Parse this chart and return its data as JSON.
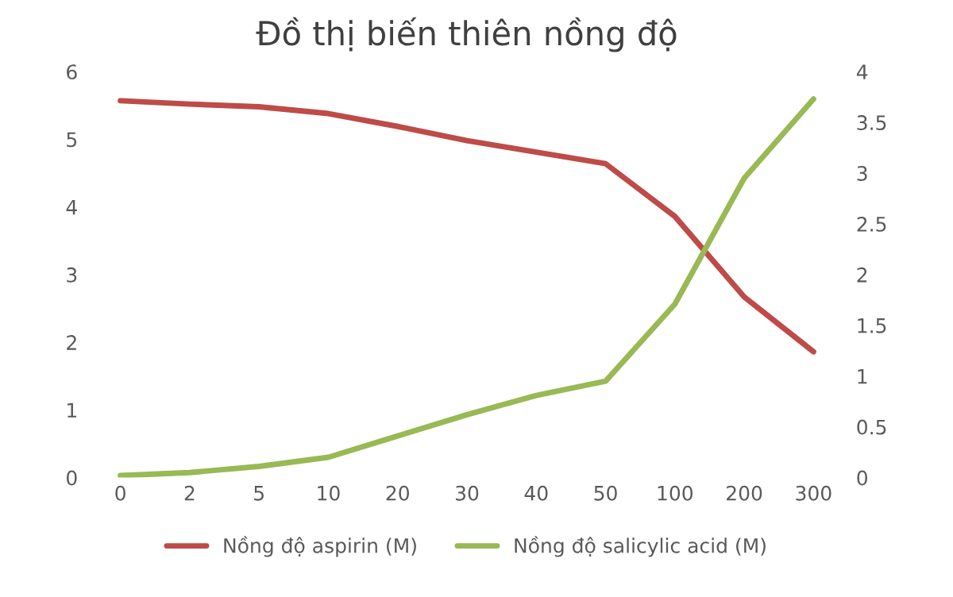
{
  "chart_data": {
    "type": "line",
    "title": "Đồ thị biến thiên nồng độ",
    "categories": [
      "0",
      "2",
      "5",
      "10",
      "20",
      "30",
      "40",
      "50",
      "100",
      "200",
      "300"
    ],
    "series": [
      {
        "name": "Nồng độ aspirin (M)",
        "color": "#be4b48",
        "values": [
          5.57,
          5.52,
          5.48,
          5.38,
          5.19,
          4.98,
          4.81,
          4.64,
          3.86,
          2.67,
          1.86
        ]
      },
      {
        "name": "Nồng độ salicylic acid (M)",
        "color": "#98b954",
        "axis": "y2",
        "values": [
          0.02,
          0.05,
          0.11,
          0.2,
          0.41,
          0.62,
          0.81,
          0.95,
          1.71,
          2.95,
          3.73
        ]
      }
    ],
    "ylim": [
      0,
      6
    ],
    "yticks": [
      0,
      1,
      2,
      3,
      4,
      5,
      6
    ],
    "y2lim": [
      0,
      4
    ],
    "y2ticks": [
      0,
      0.5,
      1,
      1.5,
      2,
      2.5,
      3,
      3.5,
      4
    ],
    "legend": "bottom",
    "grid": false
  }
}
